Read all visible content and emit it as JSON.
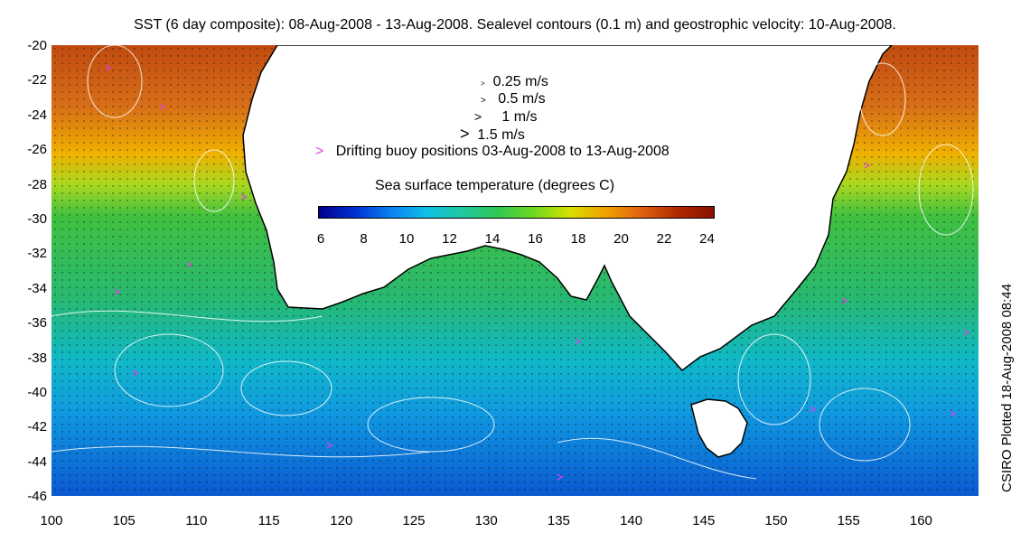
{
  "title": "SST (6 day composite): 08-Aug-2008 - 13-Aug-2008. Sealevel contours (0.1 m) and geostrophic velocity: 10-Aug-2008.",
  "credit": "CSIRO Plotted 18-Aug-2008 08:44",
  "axes": {
    "lat_labels": [
      "-20",
      "-22",
      "-24",
      "-26",
      "-28",
      "-30",
      "-32",
      "-34",
      "-36",
      "-38",
      "-40",
      "-42",
      "-44",
      "-46"
    ],
    "lon_labels": [
      "100",
      "105",
      "110",
      "115",
      "120",
      "125",
      "130",
      "135",
      "140",
      "145",
      "150",
      "155",
      "160"
    ]
  },
  "legend": {
    "velocity_entries": [
      {
        "symbol": ">",
        "label": "0.25 m/s"
      },
      {
        "symbol": ">",
        "label": "0.5 m/s"
      },
      {
        "symbol": ">",
        "label": "1 m/s"
      },
      {
        "symbol": ">",
        "label": "1.5 m/s"
      }
    ],
    "buoy_symbol": ">",
    "buoy_label": "Drifting buoy positions 03-Aug-2008 to 13-Aug-2008",
    "buoy_color": "#e040e0"
  },
  "colorbar": {
    "title": "Sea surface temperature (degrees C)",
    "ticks": [
      "6",
      "8",
      "10",
      "12",
      "14",
      "16",
      "18",
      "20",
      "22",
      "24"
    ],
    "colors": [
      "#00008c",
      "#0030d0",
      "#0a80f0",
      "#10c0e8",
      "#20c8a0",
      "#30c850",
      "#70d820",
      "#d8e000",
      "#f0a000",
      "#e06010",
      "#b02800",
      "#8a1000"
    ]
  },
  "map_colors": {
    "land": "#ffffff",
    "coast": "#000000",
    "contour": "#ffffff",
    "arrow": "#000000"
  }
}
